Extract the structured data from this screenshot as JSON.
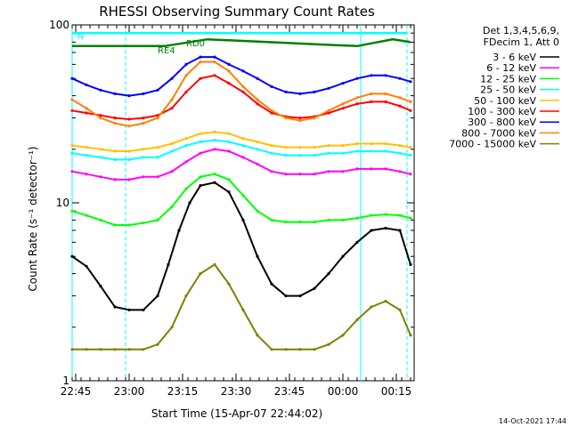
{
  "chart_data": {
    "type": "line",
    "title": "RHESSI Observing Summary Count Rates",
    "xlabel": "Start Time (15-Apr-07 22:44:02)",
    "ylabel": "Count Rate (s⁻¹ detector⁻¹)",
    "yscale": "log",
    "ylim": [
      1,
      100
    ],
    "xlim_minutes": [
      0,
      96
    ],
    "x_ticks": [
      {
        "label": "22:45",
        "minutes": 1
      },
      {
        "label": "23:00",
        "minutes": 16
      },
      {
        "label": "23:15",
        "minutes": 31
      },
      {
        "label": "23:30",
        "minutes": 46
      },
      {
        "label": "23:45",
        "minutes": 61
      },
      {
        "label": "00:00",
        "minutes": 76
      },
      {
        "label": "00:15",
        "minutes": 91
      }
    ],
    "y_tick_labels": [
      {
        "label": "1",
        "value": 1
      },
      {
        "label": "10",
        "value": 10
      },
      {
        "label": "100",
        "value": 100
      }
    ],
    "legend_header": [
      "Det 1,3,4,5,6,9,",
      "FDecim 1, Att 0"
    ],
    "legend_position": "right",
    "annotations": [
      {
        "text": "N",
        "minutes": 1.5,
        "color": "#00ffff"
      },
      {
        "text": "RD0",
        "minutes": 32,
        "color": "#008000"
      },
      {
        "text": "RE4",
        "minutes": 24,
        "color": "#008000"
      }
    ],
    "vertical_markers_minutes": [
      0,
      15,
      81,
      94
    ],
    "series": [
      {
        "name": "3 - 6 keV",
        "color": "#000000",
        "x": [
          0,
          4,
          8,
          12,
          16,
          20,
          24,
          27,
          30,
          33,
          36,
          40,
          44,
          48,
          52,
          56,
          60,
          64,
          68,
          72,
          76,
          80,
          84,
          88,
          92,
          95
        ],
        "y": [
          5,
          4.4,
          3.4,
          2.6,
          2.5,
          2.5,
          3,
          4.5,
          7,
          10,
          12.5,
          13,
          11.5,
          8,
          5,
          3.5,
          3,
          3,
          3.3,
          4,
          5,
          6,
          7,
          7.2,
          7,
          4.5
        ]
      },
      {
        "name": "6 - 12 keV",
        "color": "#ff00ff",
        "x": [
          0,
          4,
          8,
          12,
          16,
          20,
          24,
          28,
          32,
          36,
          40,
          44,
          48,
          52,
          56,
          60,
          64,
          68,
          72,
          76,
          80,
          84,
          88,
          92,
          95
        ],
        "y": [
          15,
          14.5,
          14,
          13.5,
          13.5,
          14,
          14,
          15,
          17,
          19,
          20,
          19.5,
          18,
          16.5,
          15,
          14.5,
          14.5,
          14.5,
          15,
          15,
          15.5,
          15.5,
          15.5,
          15,
          14.5
        ]
      },
      {
        "name": "12 - 25 keV",
        "color": "#00ff00",
        "x": [
          0,
          4,
          8,
          12,
          16,
          20,
          24,
          28,
          32,
          36,
          40,
          44,
          48,
          52,
          56,
          60,
          64,
          68,
          72,
          76,
          80,
          84,
          88,
          92,
          95
        ],
        "y": [
          9,
          8.5,
          8,
          7.5,
          7.5,
          7.7,
          8,
          9.5,
          12,
          14,
          14.5,
          13.5,
          11,
          9,
          8,
          7.8,
          7.8,
          7.8,
          8,
          8,
          8.2,
          8.5,
          8.6,
          8.5,
          8.2
        ]
      },
      {
        "name": "25 - 50 keV",
        "color": "#00ffff",
        "x": [
          0,
          4,
          8,
          12,
          16,
          20,
          24,
          28,
          32,
          36,
          40,
          44,
          48,
          52,
          56,
          60,
          64,
          68,
          72,
          76,
          80,
          84,
          88,
          92,
          95
        ],
        "y": [
          19,
          18.5,
          18,
          17.5,
          17.5,
          18,
          18,
          19.5,
          21,
          22,
          22.5,
          22,
          21,
          20,
          19,
          18.5,
          18.5,
          18.5,
          19,
          19,
          19.5,
          19.5,
          19.5,
          19,
          18.5
        ]
      },
      {
        "name": "50 - 100 keV",
        "color": "#ffc000",
        "x": [
          0,
          4,
          8,
          12,
          16,
          20,
          24,
          28,
          32,
          36,
          40,
          44,
          48,
          52,
          56,
          60,
          64,
          68,
          72,
          76,
          80,
          84,
          88,
          92,
          95
        ],
        "y": [
          21,
          20.5,
          20,
          19.5,
          19.5,
          20,
          20.5,
          21.5,
          23,
          24.5,
          25,
          24.5,
          23,
          22,
          21,
          20.5,
          20.5,
          20.5,
          21,
          21,
          21.5,
          21.5,
          21.5,
          21,
          20.5
        ]
      },
      {
        "name": "100 - 300 keV",
        "color": "#ff0000",
        "x": [
          0,
          4,
          8,
          12,
          16,
          20,
          24,
          28,
          32,
          36,
          40,
          44,
          48,
          52,
          56,
          60,
          64,
          68,
          72,
          76,
          80,
          84,
          88,
          92,
          95
        ],
        "y": [
          33,
          32,
          31,
          30,
          29.5,
          30,
          31,
          34,
          42,
          50,
          52,
          47,
          42,
          36,
          32,
          30.5,
          30,
          30.5,
          32,
          34,
          36,
          37,
          37,
          35,
          33
        ]
      },
      {
        "name": "300 - 800 keV",
        "color": "#0000ff",
        "x": [
          0,
          4,
          8,
          12,
          16,
          20,
          24,
          28,
          32,
          36,
          40,
          44,
          48,
          52,
          56,
          60,
          64,
          68,
          72,
          76,
          80,
          84,
          88,
          92,
          95
        ],
        "y": [
          50,
          46,
          43,
          41,
          40,
          41,
          43,
          50,
          60,
          66,
          66,
          60,
          55,
          50,
          45,
          42,
          41,
          42,
          44,
          47,
          50,
          52,
          52,
          50,
          48
        ]
      },
      {
        "name": "800 - 7000 keV",
        "color": "#ff8000",
        "x": [
          0,
          4,
          8,
          12,
          16,
          20,
          24,
          28,
          32,
          36,
          40,
          44,
          48,
          52,
          56,
          60,
          64,
          68,
          72,
          76,
          80,
          84,
          88,
          92,
          95
        ],
        "y": [
          38,
          34,
          30,
          28,
          27,
          28,
          30,
          38,
          52,
          62,
          62,
          55,
          45,
          38,
          33,
          30,
          29,
          30,
          33,
          36,
          39,
          41,
          41,
          39,
          37
        ]
      },
      {
        "name": "7000 - 15000 keV",
        "color": "#808000",
        "x": [
          0,
          4,
          8,
          12,
          16,
          20,
          24,
          28,
          32,
          36,
          40,
          44,
          48,
          52,
          56,
          60,
          64,
          68,
          72,
          76,
          80,
          84,
          88,
          92,
          95
        ],
        "y": [
          1.5,
          1.5,
          1.5,
          1.5,
          1.5,
          1.5,
          1.6,
          2,
          3,
          4,
          4.5,
          3.5,
          2.5,
          1.8,
          1.5,
          1.5,
          1.5,
          1.5,
          1.6,
          1.8,
          2.2,
          2.6,
          2.8,
          2.5,
          1.8
        ]
      }
    ],
    "status_lines": [
      {
        "name": "attenuator state",
        "color": "#008000",
        "x": [
          0,
          26,
          38,
          80,
          90,
          95
        ],
        "y": [
          76,
          76,
          83,
          76,
          83,
          80
        ]
      },
      {
        "name": "night",
        "color": "#00ffff",
        "x": [
          0,
          9,
          85,
          94
        ],
        "y": [
          90,
          90,
          90,
          90
        ]
      }
    ]
  },
  "footer": {
    "timestamp": "14-Oct-2021 17:44"
  }
}
